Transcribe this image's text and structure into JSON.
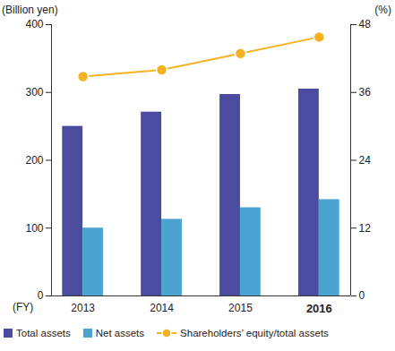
{
  "chart_data": {
    "type": "bar",
    "x_label": "(FY)",
    "y_label": "(Billion yen)",
    "y2_label": "(%)",
    "categories": [
      "2013",
      "2014",
      "2015",
      "2016"
    ],
    "ylim": [
      0,
      400
    ],
    "yticks": [
      0,
      100,
      200,
      300,
      400
    ],
    "y2lim": [
      0,
      48
    ],
    "y2ticks": [
      0,
      12,
      24,
      36,
      48
    ],
    "grid": false,
    "legend": "bottom",
    "series": [
      {
        "name": "Total assets",
        "color": "#4b4b9f",
        "values": [
          250,
          271,
          297,
          305
        ]
      },
      {
        "name": "Net assets",
        "color": "#4aa3d0",
        "values": [
          100,
          113,
          130,
          142
        ]
      },
      {
        "name": "Shareholders’ equity/total assets",
        "type": "line",
        "marker": "circle",
        "axis": "y2",
        "color": "#f4b223",
        "values": [
          38.8,
          40,
          42.9,
          45.8
        ]
      }
    ]
  }
}
